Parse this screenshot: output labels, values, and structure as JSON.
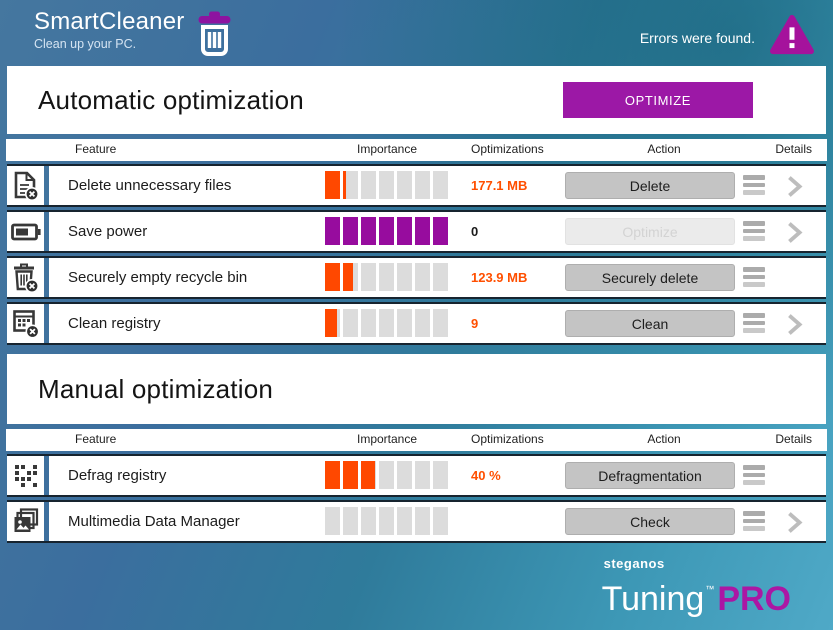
{
  "header": {
    "app_title": "SmartCleaner",
    "tagline": "Clean up your PC.",
    "status_text": "Errors were found."
  },
  "colors": {
    "accent_orange": "#ff4800",
    "accent_purple": "#970c9e",
    "optimize_button_bg": "#9c18a6",
    "warning_magenta": "#a5129c",
    "pro_magenta": "#ab17a4",
    "trash_lid_purple": "#8d13a0",
    "bar_empty_gray": "#dcdcdc"
  },
  "columns": {
    "feature": "Feature",
    "importance": "Importance",
    "optimizations": "Optimizations",
    "action": "Action",
    "details": "Details"
  },
  "sections": [
    {
      "title": "Automatic optimization",
      "optimize_button_label": "OPTIMIZE",
      "rows": [
        {
          "icon": "delete-files-icon",
          "feature": "Delete unnecessary files",
          "importance_filled": 1.2,
          "importance_total": 7,
          "importance_color": "#ff4800",
          "optimizations": "177.1 MB",
          "optimizations_color": "#ff4f00",
          "action_label": "Delete",
          "action_enabled": true,
          "has_menu": true,
          "has_chevron": true
        },
        {
          "icon": "battery-icon",
          "feature": "Save power",
          "importance_filled": 7,
          "importance_total": 7,
          "importance_color": "#970c9e",
          "optimizations": "0",
          "optimizations_color": "#1a1a1a",
          "action_label": "Optimize",
          "action_enabled": false,
          "has_menu": true,
          "has_chevron": true
        },
        {
          "icon": "recycle-bin-delete-icon",
          "feature": "Securely empty recycle bin",
          "importance_filled": 1.65,
          "importance_total": 7,
          "importance_color": "#ff4800",
          "optimizations": "123.9 MB",
          "optimizations_color": "#ff4f00",
          "action_label": "Securely delete",
          "action_enabled": true,
          "has_menu": true,
          "has_chevron": false
        },
        {
          "icon": "registry-clean-icon",
          "feature": "Clean registry",
          "importance_filled": 0.8,
          "importance_total": 7,
          "importance_color": "#ff4800",
          "optimizations": "9",
          "optimizations_color": "#ff4f00",
          "action_label": "Clean",
          "action_enabled": true,
          "has_menu": true,
          "has_chevron": true
        }
      ]
    },
    {
      "title": "Manual optimization",
      "optimize_button_label": "",
      "rows": [
        {
          "icon": "defrag-icon",
          "feature": "Defrag registry",
          "importance_filled": 2.9,
          "importance_total": 7,
          "importance_color": "#ff4800",
          "optimizations": "40 %",
          "optimizations_color": "#ff4f00",
          "action_label": "Defragmentation",
          "action_enabled": true,
          "has_menu": true,
          "has_chevron": false
        },
        {
          "icon": "multimedia-icon",
          "feature": "Multimedia Data Manager",
          "importance_filled": 0,
          "importance_total": 7,
          "importance_color": "#ff4800",
          "optimizations": "",
          "optimizations_color": "#1a1a1a",
          "action_label": "Check",
          "action_enabled": true,
          "has_menu": true,
          "has_chevron": true
        }
      ]
    }
  ],
  "footer": {
    "brand_small": "steganos",
    "brand_main": "Tuning",
    "brand_tm": "™",
    "brand_pro": "PRO"
  }
}
